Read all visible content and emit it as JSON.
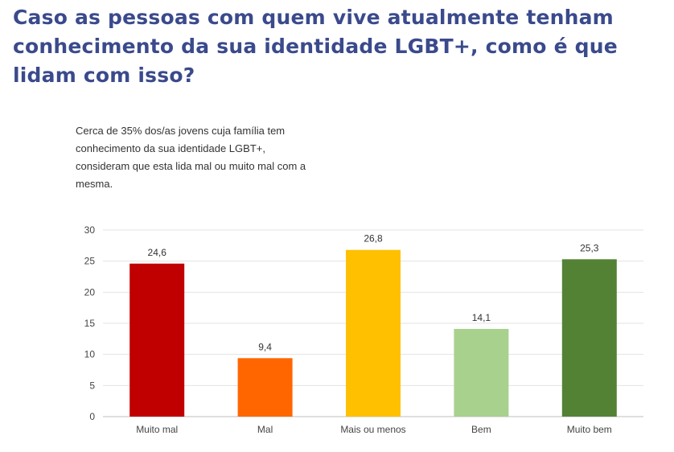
{
  "title": "Caso as pessoas com quem vive atualmente tenham conhecimento da sua identidade LGBT+, como é que lidam com isso?",
  "note": "Cerca de 35% dos/as jovens cuja família tem conhecimento da sua identidade LGBT+, consideram que esta lida mal ou muito mal com a mesma.",
  "chart_data": {
    "type": "bar",
    "title": "Caso as pessoas com quem vive atualmente tenham conhecimento da sua identidade LGBT+, como é que lidam com isso?",
    "categories": [
      "Muito mal",
      "Mal",
      "Mais ou menos",
      "Bem",
      "Muito bem"
    ],
    "values": [
      24.6,
      9.4,
      26.8,
      14.1,
      25.3
    ],
    "value_labels": [
      "24,6",
      "9,4",
      "26,8",
      "14,1",
      "25,3"
    ],
    "colors": [
      "#c00000",
      "#ff6600",
      "#ffc000",
      "#a9d18e",
      "#548235"
    ],
    "ylim": [
      0,
      30
    ],
    "yticks": [
      0,
      5,
      10,
      15,
      20,
      25,
      30
    ],
    "xlabel": "",
    "ylabel": "",
    "grid": true
  }
}
